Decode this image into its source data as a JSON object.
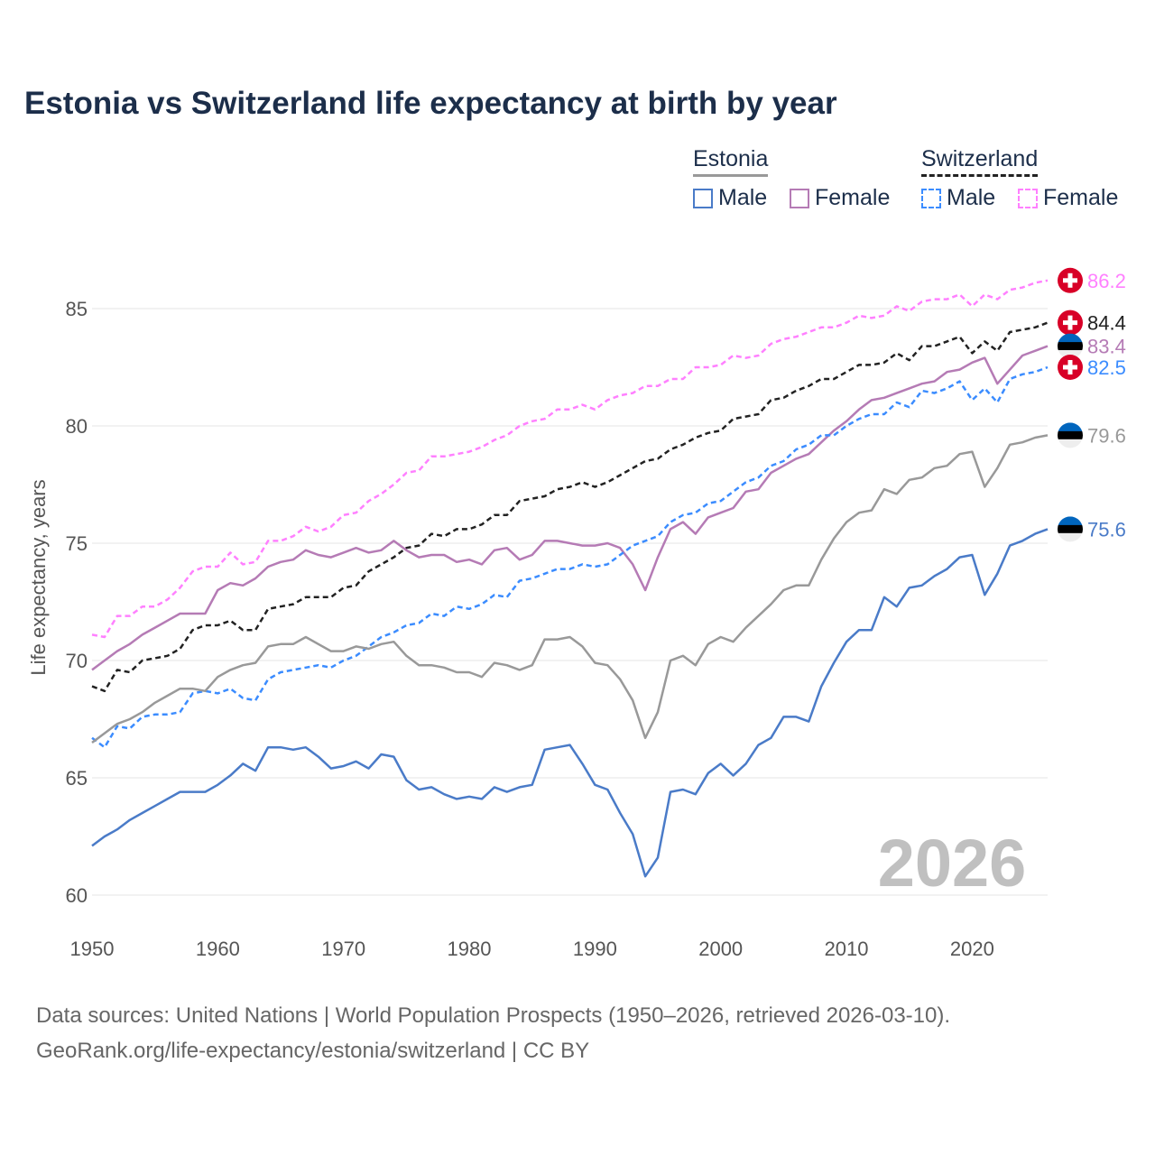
{
  "title": "Estonia vs Switzerland life expectancy at birth by year",
  "legend": {
    "estonia": {
      "label": "Estonia",
      "male": "Male",
      "female": "Female"
    },
    "switzerland": {
      "label": "Switzerland",
      "male": "Male",
      "female": "Female"
    }
  },
  "year_watermark": "2026",
  "footer": {
    "line1": "Data sources: United Nations | World Population Prospects (1950–2026, retrieved 2026-03-10).",
    "line2": "GeoRank.org/life-expectancy/estonia/switzerland | CC BY"
  },
  "chart_data": {
    "type": "line",
    "title": "Estonia vs Switzerland life expectancy at birth by year",
    "xlabel": "",
    "ylabel": "Life expectancy, years",
    "xlim": [
      1950,
      2026
    ],
    "ylim": [
      59,
      88
    ],
    "xticks": [
      1950,
      1960,
      1970,
      1980,
      1990,
      2000,
      2010,
      2020
    ],
    "yticks": [
      60,
      65,
      70,
      75,
      80,
      85
    ],
    "grid": true,
    "legend_position": "top-right",
    "x_start": 1950,
    "series": [
      {
        "name": "Switzerland Female",
        "country": "switzerland",
        "color": "#ff80ff",
        "dashed": true,
        "end_label": "86.2",
        "values": [
          71.1,
          71.0,
          71.9,
          71.9,
          72.3,
          72.3,
          72.6,
          73.1,
          73.8,
          74.0,
          74.0,
          74.6,
          74.1,
          74.2,
          75.1,
          75.1,
          75.3,
          75.7,
          75.5,
          75.7,
          76.2,
          76.3,
          76.8,
          77.1,
          77.5,
          78.0,
          78.1,
          78.7,
          78.7,
          78.8,
          78.9,
          79.1,
          79.4,
          79.6,
          80.0,
          80.2,
          80.3,
          80.7,
          80.7,
          80.9,
          80.7,
          81.1,
          81.3,
          81.4,
          81.7,
          81.7,
          82.0,
          82.0,
          82.5,
          82.5,
          82.6,
          83.0,
          82.9,
          83.0,
          83.5,
          83.7,
          83.8,
          84.0,
          84.2,
          84.2,
          84.4,
          84.7,
          84.6,
          84.7,
          85.1,
          84.9,
          85.3,
          85.4,
          85.4,
          85.6,
          85.1,
          85.6,
          85.4,
          85.8,
          85.9,
          86.1,
          86.2
        ]
      },
      {
        "name": "Switzerland",
        "country": "switzerland",
        "color": "#222222",
        "dashed": true,
        "end_label": "84.4",
        "values": [
          68.9,
          68.7,
          69.6,
          69.5,
          70.0,
          70.1,
          70.2,
          70.5,
          71.3,
          71.5,
          71.5,
          71.7,
          71.3,
          71.3,
          72.2,
          72.3,
          72.4,
          72.7,
          72.7,
          72.7,
          73.1,
          73.2,
          73.8,
          74.1,
          74.4,
          74.8,
          74.9,
          75.4,
          75.3,
          75.6,
          75.6,
          75.8,
          76.2,
          76.2,
          76.8,
          76.9,
          77.0,
          77.3,
          77.4,
          77.6,
          77.4,
          77.6,
          77.9,
          78.2,
          78.5,
          78.6,
          79.0,
          79.2,
          79.5,
          79.7,
          79.8,
          80.3,
          80.4,
          80.5,
          81.1,
          81.2,
          81.5,
          81.7,
          82.0,
          82.0,
          82.3,
          82.6,
          82.6,
          82.7,
          83.1,
          82.8,
          83.4,
          83.4,
          83.6,
          83.8,
          83.1,
          83.6,
          83.2,
          84.0,
          84.1,
          84.2,
          84.4
        ]
      },
      {
        "name": "Estonia Female",
        "country": "estonia",
        "color": "#b57bb5",
        "dashed": false,
        "end_label": "83.4",
        "values": [
          69.6,
          70.0,
          70.4,
          70.7,
          71.1,
          71.4,
          71.7,
          72.0,
          72.0,
          72.0,
          73.0,
          73.3,
          73.2,
          73.5,
          74.0,
          74.2,
          74.3,
          74.7,
          74.5,
          74.4,
          74.6,
          74.8,
          74.6,
          74.7,
          75.1,
          74.7,
          74.4,
          74.5,
          74.5,
          74.2,
          74.3,
          74.1,
          74.7,
          74.8,
          74.3,
          74.5,
          75.1,
          75.1,
          75.0,
          74.9,
          74.9,
          75.0,
          74.8,
          74.1,
          73.0,
          74.4,
          75.6,
          75.9,
          75.4,
          76.1,
          76.3,
          76.5,
          77.2,
          77.3,
          78.0,
          78.3,
          78.6,
          78.8,
          79.3,
          79.8,
          80.2,
          80.7,
          81.1,
          81.2,
          81.4,
          81.6,
          81.8,
          81.9,
          82.3,
          82.4,
          82.7,
          82.9,
          81.8,
          82.4,
          83.0,
          83.2,
          83.4
        ]
      },
      {
        "name": "Switzerland Male",
        "country": "switzerland",
        "color": "#3b8cff",
        "dashed": true,
        "end_label": "82.5",
        "values": [
          66.7,
          66.3,
          67.2,
          67.1,
          67.6,
          67.7,
          67.7,
          67.8,
          68.6,
          68.7,
          68.6,
          68.8,
          68.4,
          68.3,
          69.2,
          69.5,
          69.6,
          69.7,
          69.8,
          69.7,
          70.0,
          70.2,
          70.6,
          71.0,
          71.2,
          71.5,
          71.6,
          72.0,
          71.9,
          72.3,
          72.2,
          72.4,
          72.8,
          72.7,
          73.4,
          73.5,
          73.7,
          73.9,
          73.9,
          74.1,
          74.0,
          74.1,
          74.5,
          74.9,
          75.1,
          75.3,
          75.9,
          76.2,
          76.3,
          76.7,
          76.8,
          77.2,
          77.6,
          77.8,
          78.3,
          78.5,
          79.0,
          79.2,
          79.6,
          79.6,
          80.0,
          80.3,
          80.5,
          80.5,
          81.0,
          80.8,
          81.5,
          81.4,
          81.6,
          81.9,
          81.1,
          81.6,
          81.0,
          82.0,
          82.2,
          82.3,
          82.5
        ]
      },
      {
        "name": "Estonia",
        "country": "estonia",
        "color": "#999999",
        "dashed": false,
        "end_label": "79.6",
        "values": [
          66.5,
          66.9,
          67.3,
          67.5,
          67.8,
          68.2,
          68.5,
          68.8,
          68.8,
          68.7,
          69.3,
          69.6,
          69.8,
          69.9,
          70.6,
          70.7,
          70.7,
          71.0,
          70.7,
          70.4,
          70.4,
          70.6,
          70.5,
          70.7,
          70.8,
          70.2,
          69.8,
          69.8,
          69.7,
          69.5,
          69.5,
          69.3,
          69.9,
          69.8,
          69.6,
          69.8,
          70.9,
          70.9,
          71.0,
          70.6,
          69.9,
          69.8,
          69.2,
          68.3,
          66.7,
          67.8,
          70.0,
          70.2,
          69.8,
          70.7,
          71.0,
          70.8,
          71.4,
          71.9,
          72.4,
          73.0,
          73.2,
          73.2,
          74.3,
          75.2,
          75.9,
          76.3,
          76.4,
          77.3,
          77.1,
          77.7,
          77.8,
          78.2,
          78.3,
          78.8,
          78.9,
          77.4,
          78.2,
          79.2,
          79.3,
          79.5,
          79.6
        ]
      },
      {
        "name": "Estonia Male",
        "country": "estonia",
        "color": "#4a7bc8",
        "dashed": false,
        "end_label": "75.6",
        "values": [
          62.1,
          62.5,
          62.8,
          63.2,
          63.5,
          63.8,
          64.1,
          64.4,
          64.4,
          64.4,
          64.7,
          65.1,
          65.6,
          65.3,
          66.3,
          66.3,
          66.2,
          66.3,
          65.9,
          65.4,
          65.5,
          65.7,
          65.4,
          66.0,
          65.9,
          64.9,
          64.5,
          64.6,
          64.3,
          64.1,
          64.2,
          64.1,
          64.6,
          64.4,
          64.6,
          64.7,
          66.2,
          66.3,
          66.4,
          65.6,
          64.7,
          64.5,
          63.5,
          62.6,
          60.8,
          61.6,
          64.4,
          64.5,
          64.3,
          65.2,
          65.6,
          65.1,
          65.6,
          66.4,
          66.7,
          67.6,
          67.6,
          67.4,
          68.9,
          69.9,
          70.8,
          71.3,
          71.3,
          72.7,
          72.3,
          73.1,
          73.2,
          73.6,
          73.9,
          74.4,
          74.5,
          72.8,
          73.7,
          74.9,
          75.1,
          75.4,
          75.6
        ]
      }
    ]
  }
}
